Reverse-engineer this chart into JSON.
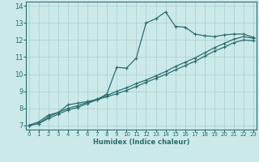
{
  "xlabel": "Humidex (Indice chaleur)",
  "x_ticks": [
    0,
    1,
    2,
    3,
    4,
    5,
    6,
    7,
    8,
    9,
    10,
    11,
    12,
    13,
    14,
    15,
    16,
    17,
    18,
    19,
    20,
    21,
    22,
    23
  ],
  "y_ticks": [
    7,
    8,
    9,
    10,
    11,
    12,
    13,
    14
  ],
  "xlim": [
    -0.3,
    23.3
  ],
  "ylim": [
    6.75,
    14.25
  ],
  "bg_color": "#cce9ea",
  "grid_color": "#aacccc",
  "line_color": "#2a6e6e",
  "curve1_y": [
    7.0,
    7.2,
    7.6,
    7.75,
    8.2,
    8.3,
    8.4,
    8.5,
    8.85,
    10.4,
    10.35,
    10.95,
    13.0,
    13.25,
    13.65,
    12.8,
    12.75,
    12.35,
    12.25,
    12.2,
    12.3,
    12.35,
    12.35,
    12.15
  ],
  "curve2_y": [
    7.0,
    7.1,
    7.5,
    7.75,
    8.0,
    8.15,
    8.35,
    8.55,
    8.75,
    9.0,
    9.2,
    9.45,
    9.65,
    9.9,
    10.15,
    10.45,
    10.7,
    10.95,
    11.25,
    11.55,
    11.8,
    12.05,
    12.2,
    12.1
  ],
  "curve3_y": [
    7.0,
    7.1,
    7.4,
    7.65,
    7.9,
    8.05,
    8.28,
    8.5,
    8.68,
    8.85,
    9.05,
    9.28,
    9.52,
    9.75,
    9.98,
    10.25,
    10.5,
    10.75,
    11.05,
    11.35,
    11.58,
    11.85,
    12.0,
    11.95
  ]
}
